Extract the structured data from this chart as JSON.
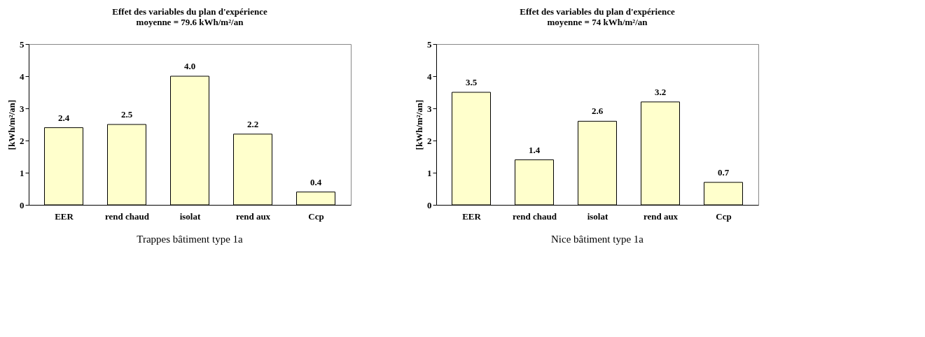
{
  "chart_data": [
    {
      "type": "bar",
      "title": [
        "Effet des variables du plan d'expérience",
        "moyenne = 79.6 kWh/m²/an"
      ],
      "ylabel": "[kWh/m²/an]",
      "categories": [
        "EER",
        "rend chaud",
        "isolat",
        "rend aux",
        "Ccp"
      ],
      "values": [
        2.4,
        2.5,
        4.0,
        2.2,
        0.4
      ],
      "value_labels": [
        "2.4",
        "2.5",
        "4.0",
        "2.2",
        "0.4"
      ],
      "color": "#ffffcc",
      "ylim": [
        0,
        5
      ],
      "yticks": [
        0,
        1,
        2,
        3,
        4,
        5
      ],
      "annotations": [
        "Trappes bâtiment type 1a"
      ]
    },
    {
      "type": "bar",
      "title": [
        "Effet des variables du plan d'expérience",
        "moyenne = 74 kWh/m²/an"
      ],
      "ylabel": "[kWh/m²/an]",
      "categories": [
        "EER",
        "rend chaud",
        "isolat",
        "rend aux",
        "Ccp"
      ],
      "values": [
        3.5,
        1.4,
        2.6,
        3.2,
        0.7
      ],
      "value_labels": [
        "3.5",
        "1.4",
        "2.6",
        "3.2",
        "0.7"
      ],
      "color": "#ffffcc",
      "ylim": [
        0,
        5
      ],
      "yticks": [
        0,
        1,
        2,
        3,
        4,
        5
      ],
      "annotations": [
        "Nice bâtiment type 1a"
      ]
    }
  ]
}
